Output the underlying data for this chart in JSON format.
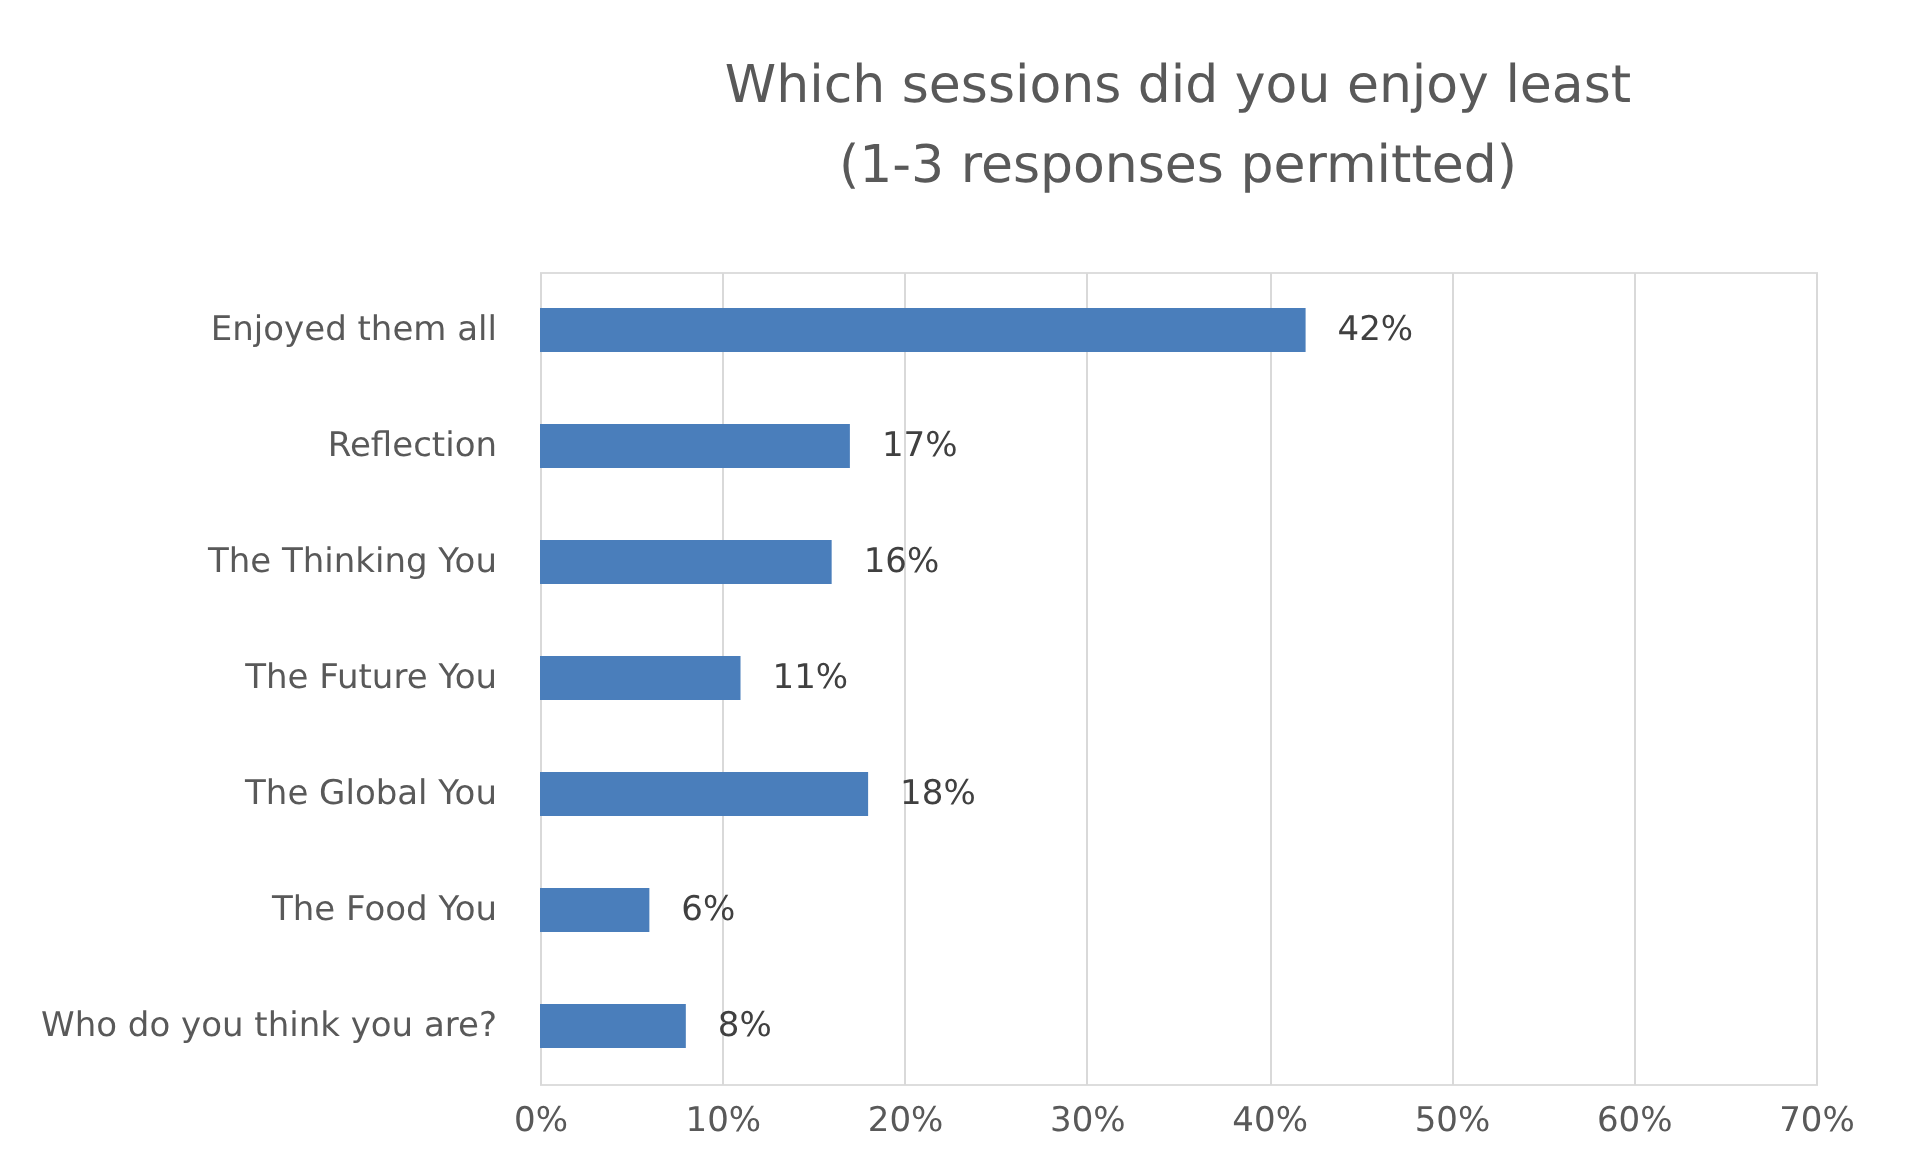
{
  "chart_data": {
    "type": "bar",
    "orientation": "horizontal",
    "title": "Which sessions did you enjoy least\n(1-3 responses permitted)",
    "categories": [
      "Enjoyed them all",
      "Reflection",
      "The Thinking You",
      "The Future You",
      "The Global You",
      "The Food You",
      "Who do you think you are?"
    ],
    "values": [
      42,
      17,
      16,
      11,
      18,
      6,
      8
    ],
    "value_labels": [
      "42%",
      "17%",
      "16%",
      "11%",
      "18%",
      "6%",
      "8%"
    ],
    "color": "#4a7ebb",
    "xlim": [
      0,
      70
    ],
    "xticks": [
      {
        "value": 0,
        "label": "0%"
      },
      {
        "value": 10,
        "label": "10%"
      },
      {
        "value": 20,
        "label": "20%"
      },
      {
        "value": 30,
        "label": "30%"
      },
      {
        "value": 40,
        "label": "40%"
      },
      {
        "value": 50,
        "label": "50%"
      },
      {
        "value": 60,
        "label": "60%"
      },
      {
        "value": 70,
        "label": "70%"
      }
    ],
    "grid": "x"
  }
}
